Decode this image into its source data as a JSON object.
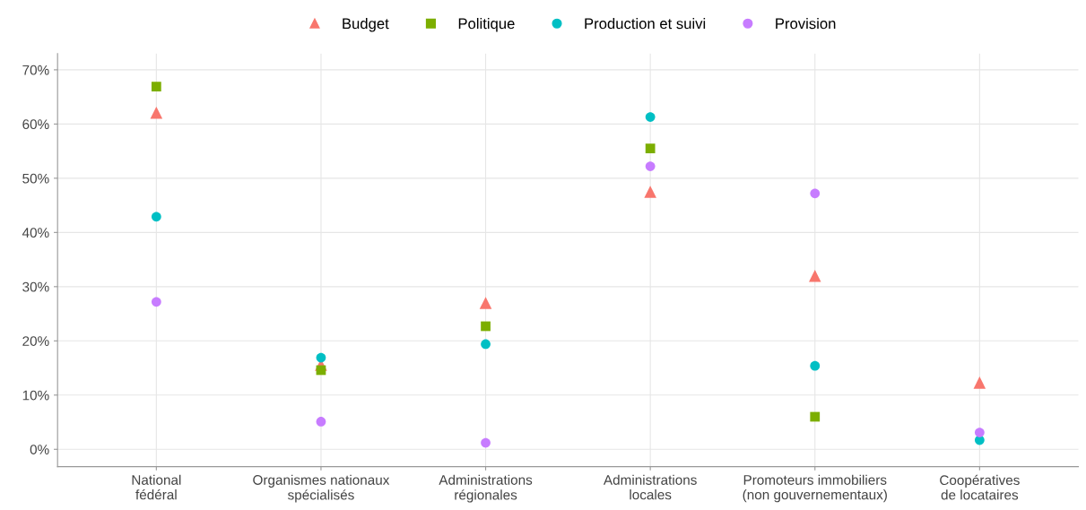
{
  "chart_data": {
    "type": "scatter",
    "categories": [
      "National\nfédéral",
      "Organismes nationaux\nspécialisés",
      "Administrations\nrégionales",
      "Administrations\nlocales",
      "Promoteurs immobiliers\n(non gouvernementaux)",
      "Coopératives\nde locataires"
    ],
    "series": [
      {
        "name": "Budget",
        "color": "#f8766d",
        "marker": "triangle",
        "values": [
          62.1,
          15.6,
          27.0,
          47.5,
          32.0,
          12.3
        ]
      },
      {
        "name": "Politique",
        "color": "#7cae00",
        "marker": "square",
        "values": [
          66.9,
          14.6,
          22.7,
          55.5,
          6.0,
          null
        ]
      },
      {
        "name": "Production et suivi",
        "color": "#00bfc4",
        "marker": "circle",
        "values": [
          42.9,
          16.9,
          19.4,
          61.3,
          15.4,
          1.7
        ]
      },
      {
        "name": "Provision",
        "color": "#c77cff",
        "marker": "circle",
        "values": [
          27.2,
          5.1,
          1.2,
          52.2,
          47.2,
          3.1
        ]
      }
    ],
    "ylim": [
      -3.2,
      73
    ],
    "yticks": [
      {
        "value": 0,
        "label": "0%"
      },
      {
        "value": 10,
        "label": "10%"
      },
      {
        "value": 20,
        "label": "20%"
      },
      {
        "value": 30,
        "label": "30%"
      },
      {
        "value": 40,
        "label": "40%"
      },
      {
        "value": 50,
        "label": "50%"
      },
      {
        "value": 60,
        "label": "60%"
      },
      {
        "value": 70,
        "label": "70%"
      }
    ],
    "grid": true,
    "legend": "top"
  }
}
